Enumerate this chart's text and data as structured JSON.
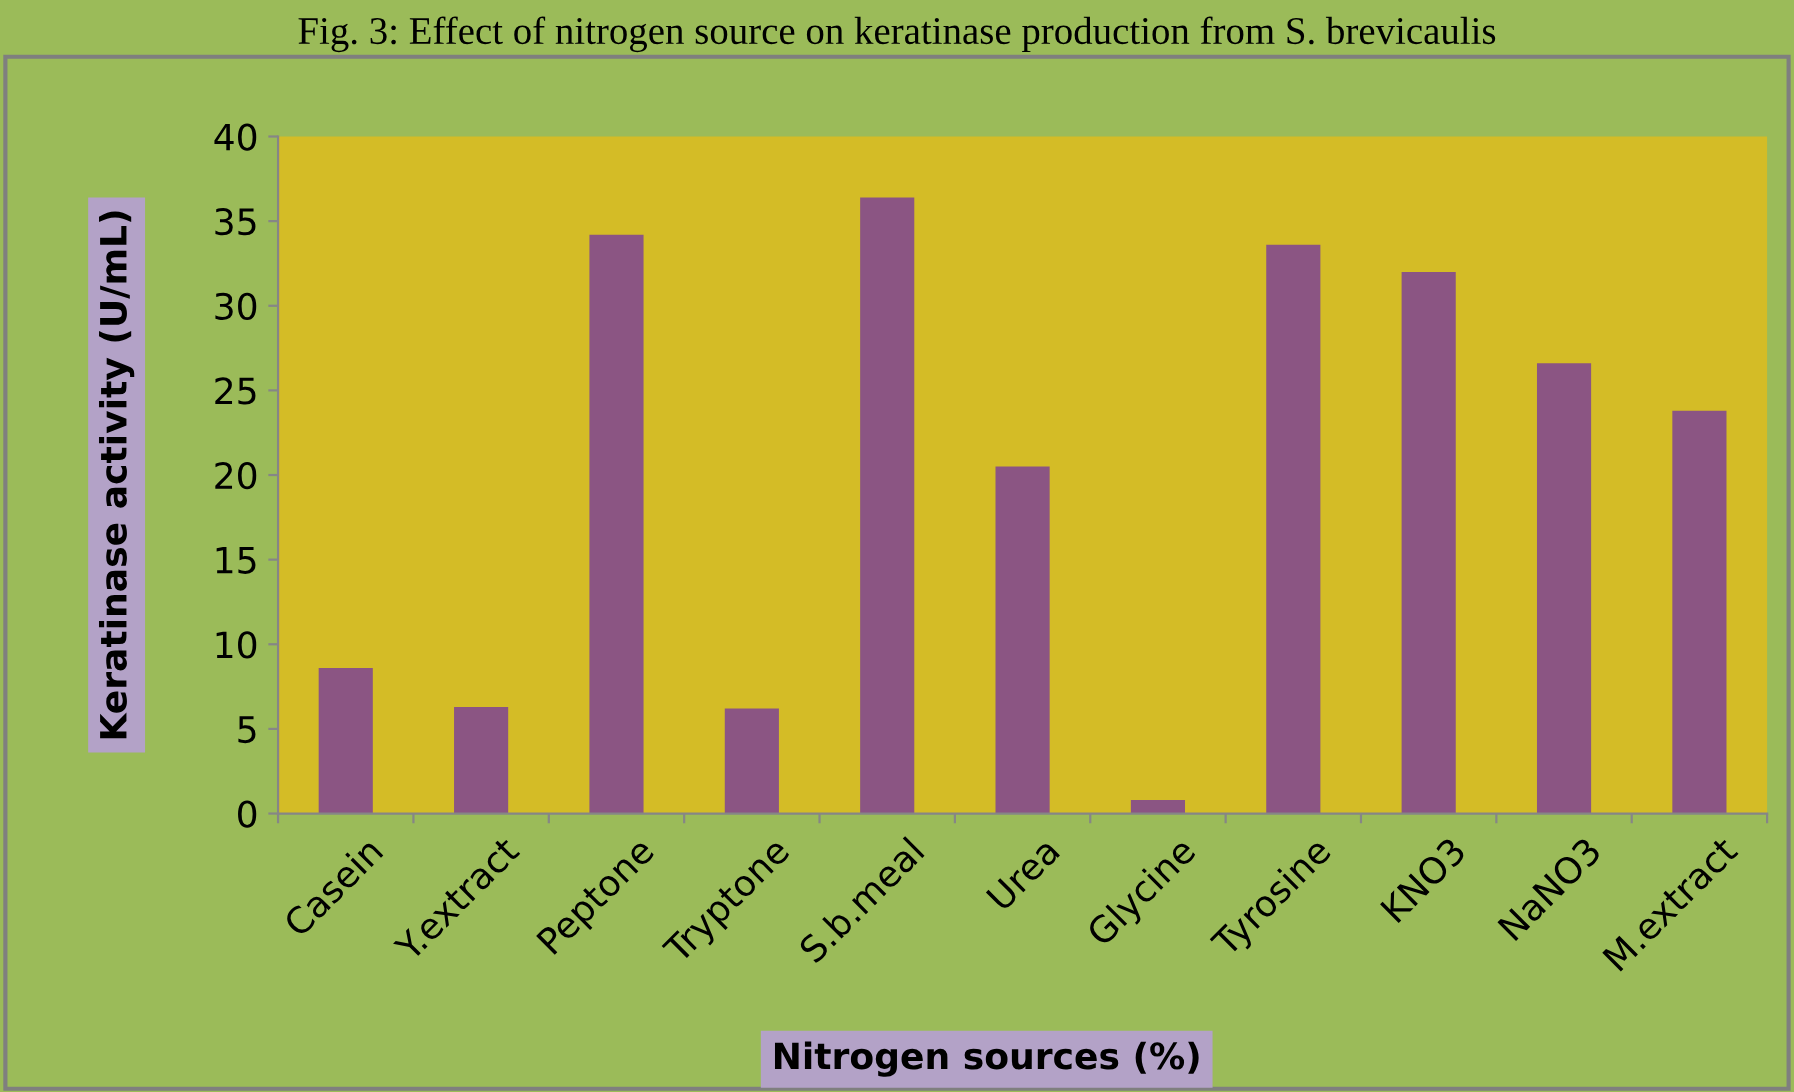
{
  "chart_data": {
    "type": "bar",
    "title": "Fig. 3: Effect of nitrogen source on keratinase production from S. brevicaulis",
    "xlabel": "Nitrogen sources (%)",
    "ylabel": "Keratinase activity (U/mL)",
    "categories": [
      "Casein",
      "Y.extract",
      "Peptone",
      "Tryptone",
      "S.b.meal",
      "Urea",
      "Glycine",
      "Tyrosine",
      "KNO3",
      "NaNO3",
      "M.extract"
    ],
    "values": [
      8.6,
      6.3,
      34.2,
      6.2,
      36.4,
      20.5,
      0.8,
      33.6,
      32.0,
      26.6,
      23.8
    ],
    "color": "#8b5583",
    "ylim": [
      0,
      40
    ],
    "yticks": [
      0,
      5,
      10,
      15,
      20,
      25,
      30,
      35,
      40
    ],
    "grid": false,
    "legend": false
  }
}
